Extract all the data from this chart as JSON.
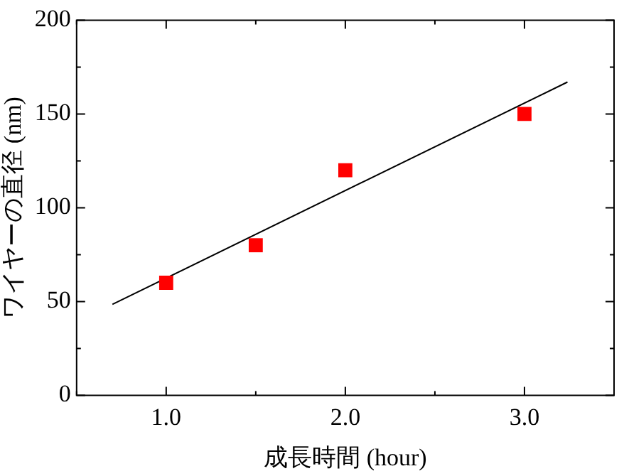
{
  "chart_data": {
    "type": "scatter",
    "xlabel": "成長時間 (hour)",
    "ylabel": "ワイヤーの直径 (nm)",
    "xlim": [
      0.5,
      3.5
    ],
    "xticks": [
      {
        "value": 0.5,
        "label": null
      },
      {
        "value": 1,
        "label": "1.0"
      },
      {
        "value": 1.5,
        "label": null
      },
      {
        "value": 2,
        "label": "2.0"
      },
      {
        "value": 2.5,
        "label": null
      },
      {
        "value": 3,
        "label": "3.0"
      },
      {
        "value": 3.5,
        "label": null
      }
    ],
    "ylim": [
      0,
      200
    ],
    "yticks": [
      0,
      {
        "value": 25,
        "label": null
      },
      50,
      {
        "value": 75,
        "label": null
      },
      100,
      {
        "value": 125,
        "label": null
      },
      150,
      {
        "value": 175,
        "label": null
      },
      200
    ],
    "series": [
      {
        "type": "scatter",
        "color": "#ff0000",
        "marker": "square",
        "x": [
          1.0,
          1.5,
          2.0,
          3.0
        ],
        "values": [
          60,
          80,
          120,
          150
        ]
      },
      {
        "type": "line",
        "color": "#000000",
        "marker": "none",
        "line_style": "solid",
        "x": [
          0.7,
          3.24
        ],
        "values": [
          48.5,
          167
        ]
      }
    ]
  }
}
